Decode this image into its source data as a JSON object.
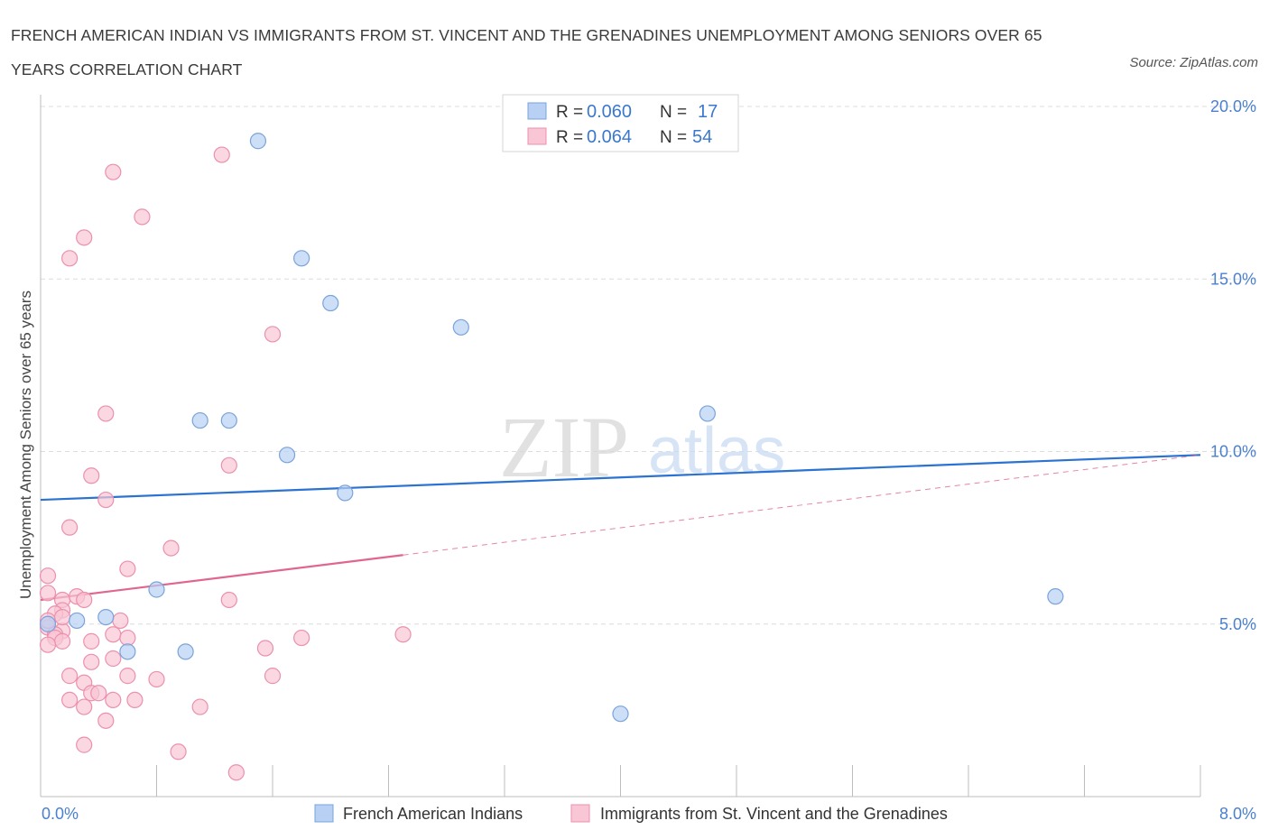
{
  "title": "FRENCH AMERICAN INDIAN VS IMMIGRANTS FROM ST. VINCENT AND THE GRENADINES UNEMPLOYMENT AMONG SENIORS OVER 65 YEARS CORRELATION CHART",
  "source": "Source: ZipAtlas.com",
  "watermark": {
    "zip": "ZIP",
    "atlas": "atlas"
  },
  "legend_box": [
    {
      "r_label": "R =",
      "r_value": "0.060",
      "n_label": "N =",
      "n_value": "17"
    },
    {
      "r_label": "R =",
      "r_value": "0.064",
      "n_label": "N =",
      "n_value": "54"
    }
  ],
  "colors": {
    "blue_fill": "#b8d0f4",
    "blue_stroke": "#7aa3dc",
    "blue_line": "#2b72d1",
    "pink_fill": "#f8c6d4",
    "pink_stroke": "#ec90ad",
    "pink_line": "#e0668f",
    "axis_blue": "#4a80d0",
    "grid": "#dcdcdc"
  },
  "chart_data": {
    "type": "scatter",
    "title": "FRENCH AMERICAN INDIAN VS IMMIGRANTS FROM ST. VINCENT AND THE GRENADINES UNEMPLOYMENT AMONG SENIORS OVER 65 YEARS CORRELATION CHART",
    "xlabel": "",
    "ylabel": "Unemployment Among Seniors over 65 years",
    "xlim": [
      0,
      8
    ],
    "ylim": [
      0,
      20
    ],
    "x_tick_labels": [
      "0.0%",
      "8.0%"
    ],
    "y_ticks": [
      5,
      10,
      15,
      20
    ],
    "y_tick_labels": [
      "5.0%",
      "10.0%",
      "15.0%",
      "20.0%"
    ],
    "grid": true,
    "legend_position": "bottom",
    "series": [
      {
        "name": "French American Indians",
        "color": "#b8d0f4",
        "points": [
          [
            1.5,
            19.0
          ],
          [
            1.8,
            15.6
          ],
          [
            2.0,
            14.3
          ],
          [
            2.9,
            13.6
          ],
          [
            1.1,
            10.9
          ],
          [
            1.3,
            10.9
          ],
          [
            1.7,
            9.9
          ],
          [
            4.6,
            11.1
          ],
          [
            2.1,
            8.8
          ],
          [
            0.8,
            6.0
          ],
          [
            7.0,
            5.8
          ],
          [
            0.45,
            5.2
          ],
          [
            0.25,
            5.1
          ],
          [
            0.6,
            4.2
          ],
          [
            1.0,
            4.2
          ],
          [
            4.0,
            2.4
          ],
          [
            0.05,
            5.0
          ]
        ],
        "trend": {
          "x": [
            0,
            8
          ],
          "y": [
            8.6,
            9.9
          ],
          "style": "solid"
        }
      },
      {
        "name": "Immigrants from St. Vincent and the Grenadines",
        "color": "#f8c6d4",
        "points": [
          [
            1.25,
            18.6
          ],
          [
            0.5,
            18.1
          ],
          [
            0.7,
            16.8
          ],
          [
            0.3,
            16.2
          ],
          [
            0.2,
            15.6
          ],
          [
            1.6,
            13.4
          ],
          [
            0.45,
            11.1
          ],
          [
            1.3,
            9.6
          ],
          [
            0.35,
            9.3
          ],
          [
            0.45,
            8.6
          ],
          [
            0.2,
            7.8
          ],
          [
            0.9,
            7.2
          ],
          [
            0.6,
            6.6
          ],
          [
            0.05,
            6.4
          ],
          [
            0.05,
            5.9
          ],
          [
            0.15,
            5.7
          ],
          [
            0.25,
            5.8
          ],
          [
            0.3,
            5.7
          ],
          [
            1.3,
            5.7
          ],
          [
            0.15,
            5.4
          ],
          [
            0.1,
            5.3
          ],
          [
            0.55,
            5.1
          ],
          [
            0.05,
            4.9
          ],
          [
            0.15,
            4.8
          ],
          [
            0.1,
            4.7
          ],
          [
            0.5,
            4.7
          ],
          [
            0.6,
            4.6
          ],
          [
            0.1,
            4.6
          ],
          [
            0.15,
            4.5
          ],
          [
            0.35,
            4.5
          ],
          [
            1.8,
            4.6
          ],
          [
            2.5,
            4.7
          ],
          [
            0.05,
            4.4
          ],
          [
            1.55,
            4.3
          ],
          [
            0.35,
            3.9
          ],
          [
            0.5,
            4.0
          ],
          [
            0.2,
            3.5
          ],
          [
            0.6,
            3.5
          ],
          [
            0.8,
            3.4
          ],
          [
            1.6,
            3.5
          ],
          [
            0.3,
            3.3
          ],
          [
            0.35,
            3.0
          ],
          [
            0.4,
            3.0
          ],
          [
            0.2,
            2.8
          ],
          [
            0.5,
            2.8
          ],
          [
            0.65,
            2.8
          ],
          [
            0.3,
            2.6
          ],
          [
            1.1,
            2.6
          ],
          [
            0.45,
            2.2
          ],
          [
            0.3,
            1.5
          ],
          [
            0.95,
            1.3
          ],
          [
            1.35,
            0.7
          ],
          [
            0.05,
            5.1
          ],
          [
            0.15,
            5.2
          ]
        ],
        "trend": {
          "x": [
            0,
            2.5
          ],
          "y": [
            5.7,
            7.0
          ],
          "style": "solid",
          "extension": {
            "x": [
              2.5,
              8
            ],
            "y": [
              7.0,
              9.9
            ],
            "style": "dashed"
          }
        }
      }
    ]
  }
}
